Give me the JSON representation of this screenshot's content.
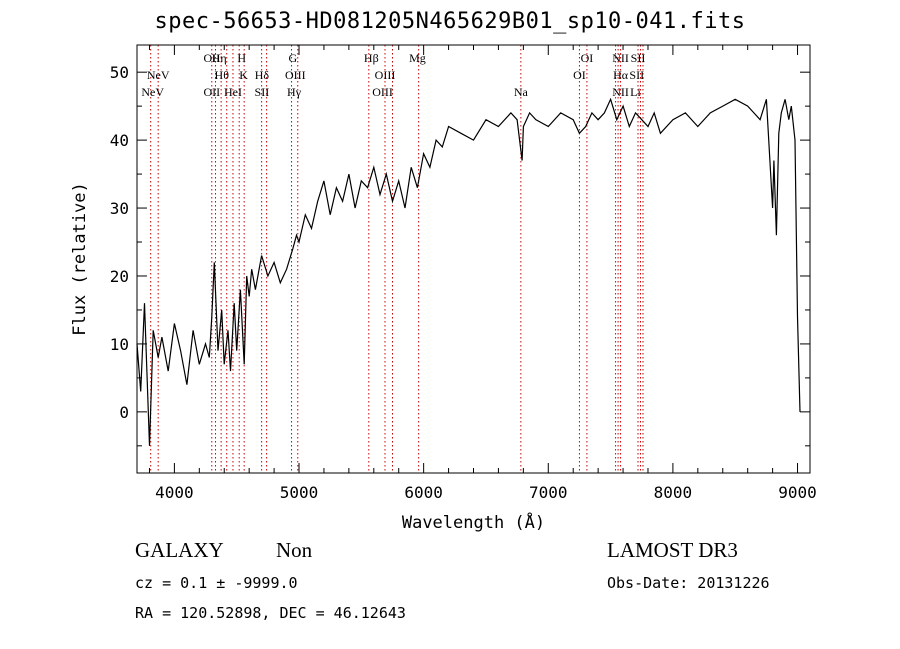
{
  "title": "spec-56653-HD081205N465629B01_sp10-041.fits",
  "info": {
    "class": "GALAXY",
    "subclass": "Non",
    "survey": "LAMOST DR3",
    "cz": "cz = 0.1 ± -9999.0",
    "obs_date": "Obs-Date: 20131226",
    "radec": "RA = 120.52898, DEC =  46.12643"
  },
  "chart_data": {
    "type": "line",
    "title": "spec-56653-HD081205N465629B01_sp10-041.fits",
    "xlabel": "Wavelength (Å)",
    "ylabel": "Flux (relative)",
    "xlim": [
      3700,
      9100
    ],
    "ylim": [
      -9,
      54
    ],
    "xticks": [
      4000,
      5000,
      6000,
      7000,
      8000,
      9000
    ],
    "yticks": [
      0,
      10,
      20,
      30,
      40,
      50
    ],
    "grid": false,
    "line_color": "#000000",
    "marker_color": "#cc0000",
    "series": [
      {
        "x": [
          3700,
          3730,
          3760,
          3800,
          3830,
          3870,
          3900,
          3950,
          4000,
          4050,
          4100,
          4150,
          4200,
          4250,
          4280,
          4300,
          4320,
          4350,
          4380,
          4400,
          4430,
          4450,
          4480,
          4500,
          4530,
          4560,
          4580,
          4600,
          4620,
          4650,
          4700,
          4750,
          4800,
          4850,
          4900,
          4950,
          4980,
          5000,
          5050,
          5100,
          5150,
          5200,
          5250,
          5300,
          5350,
          5400,
          5450,
          5500,
          5550,
          5600,
          5650,
          5700,
          5750,
          5800,
          5850,
          5900,
          5950,
          6000,
          6050,
          6100,
          6150,
          6200,
          6300,
          6400,
          6500,
          6600,
          6700,
          6750,
          6790,
          6800,
          6850,
          6900,
          7000,
          7100,
          7200,
          7250,
          7300,
          7350,
          7400,
          7450,
          7500,
          7550,
          7600,
          7650,
          7700,
          7750,
          7800,
          7850,
          7900,
          8000,
          8100,
          8200,
          8300,
          8400,
          8500,
          8600,
          8650,
          8700,
          8750,
          8800,
          8810,
          8830,
          8850,
          8870,
          8900,
          8930,
          8950,
          8980,
          9000,
          9020
        ],
        "y": [
          10,
          3,
          16,
          -5,
          12,
          8,
          11,
          6,
          13,
          9,
          4,
          12,
          7,
          10,
          8,
          14,
          22,
          9,
          15,
          7,
          12,
          6,
          16,
          9,
          18,
          7,
          20,
          17,
          21,
          18,
          23,
          20,
          22,
          19,
          21,
          24,
          26,
          25,
          29,
          27,
          31,
          34,
          29,
          33,
          31,
          35,
          30,
          34,
          33,
          36,
          32,
          35,
          31,
          34,
          30,
          36,
          33,
          38,
          36,
          40,
          39,
          42,
          41,
          40,
          43,
          42,
          44,
          43,
          37,
          42,
          44,
          43,
          42,
          44,
          43,
          41,
          42,
          44,
          43,
          44,
          46,
          43,
          45,
          42,
          44,
          43,
          42,
          44,
          41,
          43,
          44,
          42,
          44,
          45,
          46,
          45,
          44,
          43,
          46,
          30,
          37,
          26,
          41,
          44,
          46,
          43,
          45,
          40,
          14,
          0
        ]
      }
    ],
    "lines": [
      {
        "label": "NeV",
        "x": 3870,
        "row": 1
      },
      {
        "label": "NeV",
        "x": 3826,
        "row": 2
      },
      {
        "label": "OII",
        "x": 4300,
        "row": 0
      },
      {
        "label": "Hη",
        "x": 4360,
        "row": 0
      },
      {
        "label": "H",
        "x": 4540,
        "row": 0
      },
      {
        "label": "OII",
        "x": 4300,
        "row": 2
      },
      {
        "label": "Hθ",
        "x": 4380,
        "row": 1
      },
      {
        "label": "HeI",
        "x": 4470,
        "row": 2
      },
      {
        "label": "K",
        "x": 4555,
        "row": 1
      },
      {
        "label": "Hδ",
        "x": 4702,
        "row": 1
      },
      {
        "label": "SII",
        "x": 4702,
        "row": 2
      },
      {
        "label": "G",
        "x": 4950,
        "row": 0
      },
      {
        "label": "OIII",
        "x": 4970,
        "row": 1
      },
      {
        "label": "Hγ",
        "x": 4960,
        "row": 2
      },
      {
        "label": "Hβ",
        "x": 5580,
        "row": 0
      },
      {
        "label": "OIII",
        "x": 5690,
        "row": 1
      },
      {
        "label": "OIII",
        "x": 5670,
        "row": 2
      },
      {
        "label": "Mg",
        "x": 5950,
        "row": 0
      },
      {
        "label": "Na",
        "x": 6780,
        "row": 2
      },
      {
        "label": "OI",
        "x": 7310,
        "row": 0
      },
      {
        "label": "OI",
        "x": 7250,
        "row": 1
      },
      {
        "label": "NII",
        "x": 7580,
        "row": 0
      },
      {
        "label": "Hα",
        "x": 7580,
        "row": 1
      },
      {
        "label": "NII",
        "x": 7580,
        "row": 2
      },
      {
        "label": "SII",
        "x": 7720,
        "row": 0
      },
      {
        "label": "SII",
        "x": 7710,
        "row": 1
      },
      {
        "label": "Li",
        "x": 7700,
        "row": 2
      }
    ],
    "marker_positions": [
      3810,
      3870,
      4300,
      4330,
      4375,
      4420,
      4470,
      4520,
      4560,
      4700,
      4740,
      4940,
      4990,
      5560,
      5690,
      5750,
      5960,
      6780,
      7250,
      7310,
      7540,
      7560,
      7580,
      7720,
      7740,
      7760
    ]
  }
}
